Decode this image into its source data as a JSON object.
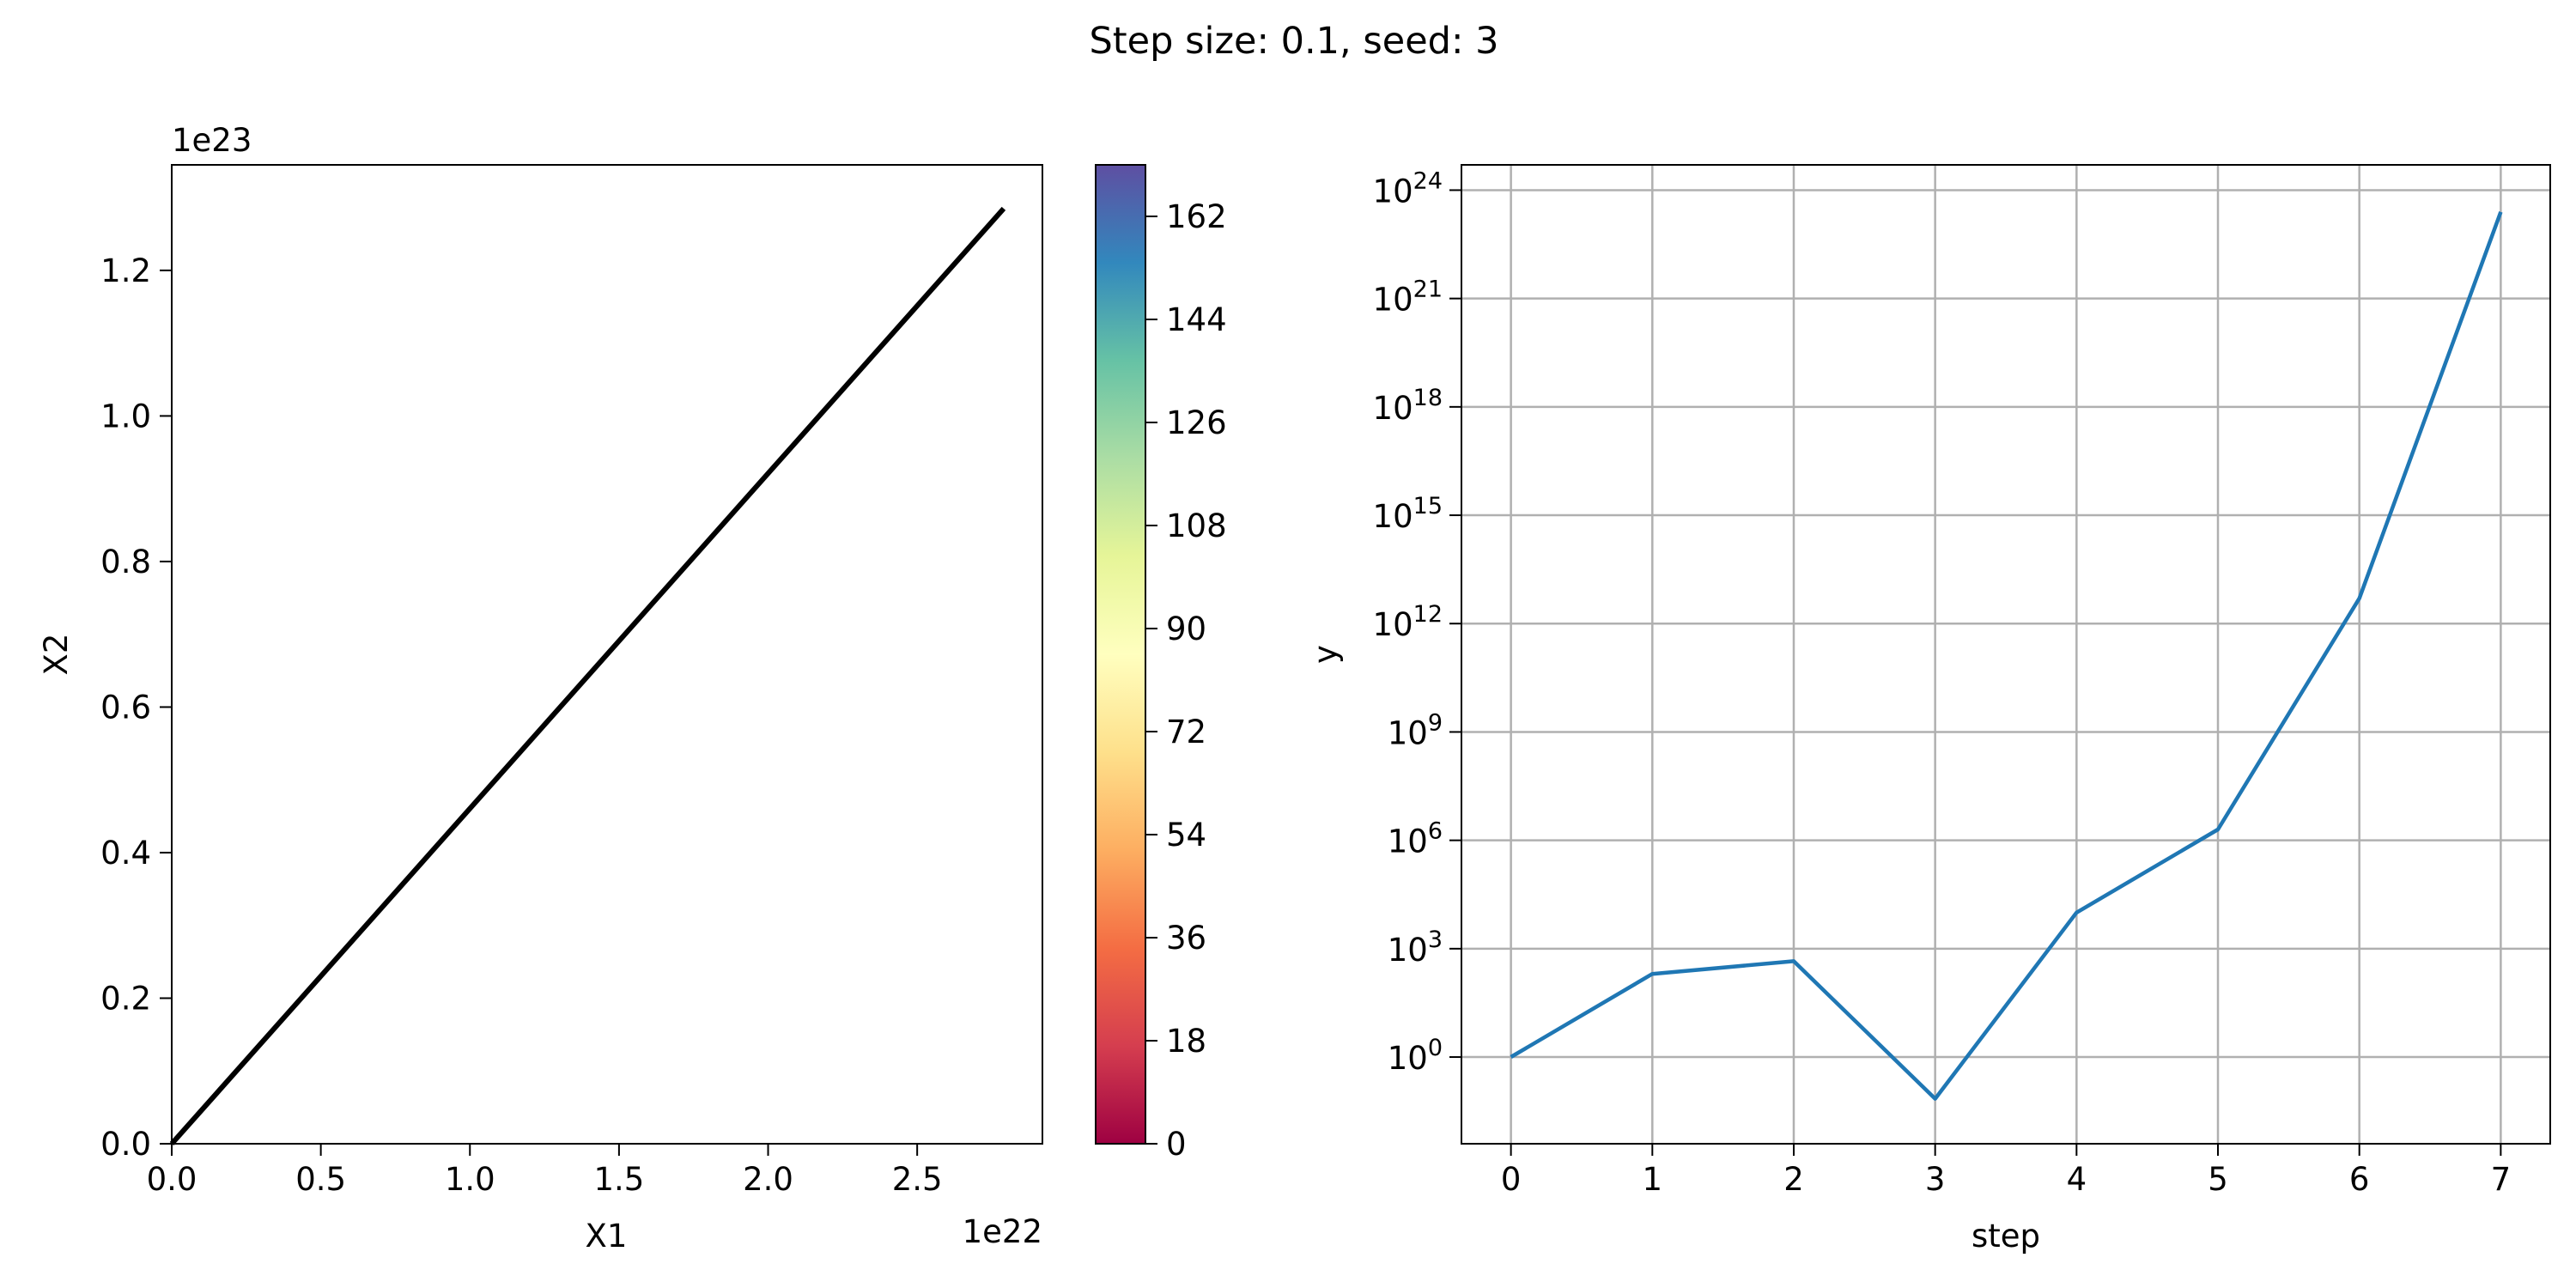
{
  "figure": {
    "suptitle": "Step size: 0.1, seed: 3"
  },
  "chart_data": [
    {
      "type": "line",
      "title": "",
      "xlabel": "X1",
      "ylabel": "X2",
      "x_offset_text": "1e22",
      "y_offset_text": "1e23",
      "xlim": [
        0.0,
        2.92
      ],
      "ylim": [
        0.0,
        1.345
      ],
      "xticks": [
        0.0,
        0.5,
        1.0,
        1.5,
        2.0,
        2.5
      ],
      "xtick_labels": [
        "0.0",
        "0.5",
        "1.0",
        "1.5",
        "2.0",
        "2.5"
      ],
      "yticks": [
        0.0,
        0.2,
        0.4,
        0.6,
        0.8,
        1.0,
        1.2
      ],
      "ytick_labels": [
        "0.0",
        "0.2",
        "0.4",
        "0.6",
        "0.8",
        "1.0",
        "1.2"
      ],
      "grid": false,
      "line_color": "#000000",
      "series": [
        {
          "x": [
            0.0,
            2.79
          ],
          "y": [
            0.0,
            1.285
          ]
        }
      ],
      "colorbar": {
        "colormap": "Spectral",
        "range": [
          0,
          171
        ],
        "ticks": [
          0,
          18,
          36,
          54,
          72,
          90,
          108,
          126,
          144,
          162
        ],
        "tick_labels": [
          "0",
          "18",
          "36",
          "54",
          "72",
          "90",
          "108",
          "126",
          "144",
          "162"
        ],
        "colors": [
          "#9e0142",
          "#d53e4f",
          "#f46d43",
          "#fdae61",
          "#fee08b",
          "#ffffbf",
          "#e6f598",
          "#abdda4",
          "#66c2a5",
          "#3288bd",
          "#5e4fa2"
        ]
      }
    },
    {
      "type": "line",
      "title": "",
      "xlabel": "step",
      "ylabel": "y",
      "yscale": "log",
      "xlim": [
        -0.35,
        7.35
      ],
      "ylim_log10": [
        -2.4,
        24.7
      ],
      "xticks": [
        0,
        1,
        2,
        3,
        4,
        5,
        6,
        7
      ],
      "xtick_labels": [
        "0",
        "1",
        "2",
        "3",
        "4",
        "5",
        "6",
        "7"
      ],
      "yticks_log10": [
        0,
        3,
        6,
        9,
        12,
        15,
        18,
        21,
        24
      ],
      "ytick_base": "10",
      "ytick_exponents": [
        "0",
        "3",
        "6",
        "9",
        "12",
        "15",
        "18",
        "21",
        "24"
      ],
      "grid": true,
      "line_color": "#1f77b4",
      "series": [
        {
          "x": [
            0,
            1,
            2,
            3,
            4,
            5,
            6,
            7
          ],
          "y": [
            1,
            200,
            450,
            0.07,
            10000,
            2000000,
            5000000000000,
            2.5e+23
          ]
        }
      ]
    }
  ]
}
